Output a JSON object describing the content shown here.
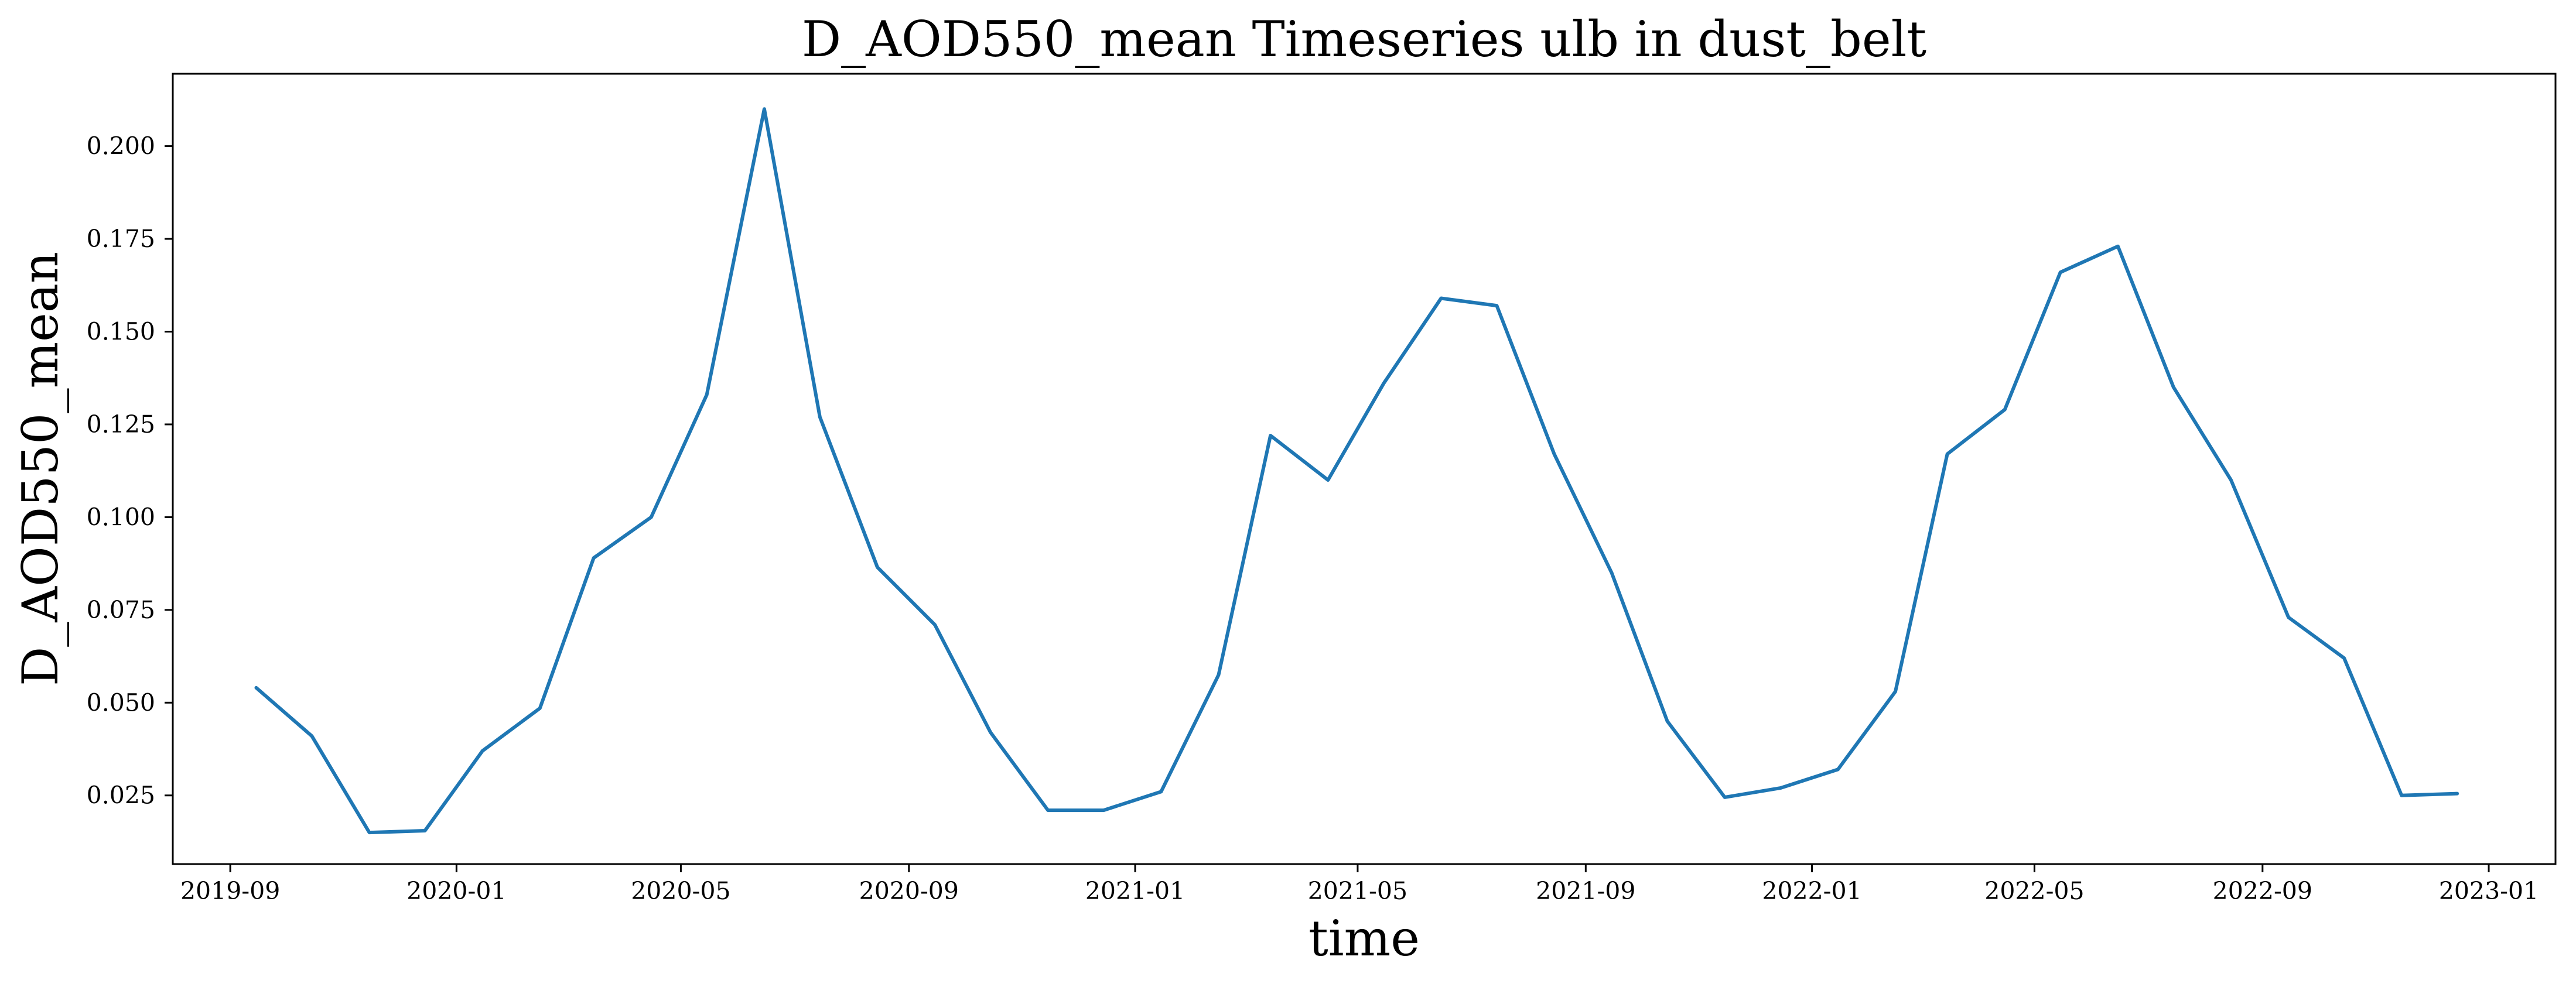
{
  "chart_data": {
    "type": "line",
    "title": "D_AOD550_mean Timeseries ulb in dust_belt",
    "xlabel": "time",
    "ylabel": "D_AOD550_mean",
    "xlim": [
      "2019-08-01",
      "2023-02-06"
    ],
    "ylim": [
      0.0065,
      0.2195
    ],
    "grid": false,
    "x_ticks": [
      {
        "date": "2019-09-01",
        "label": "2019-09"
      },
      {
        "date": "2020-01-01",
        "label": "2020-01"
      },
      {
        "date": "2020-05-01",
        "label": "2020-05"
      },
      {
        "date": "2020-09-01",
        "label": "2020-09"
      },
      {
        "date": "2021-01-01",
        "label": "2021-01"
      },
      {
        "date": "2021-05-01",
        "label": "2021-05"
      },
      {
        "date": "2021-09-01",
        "label": "2021-09"
      },
      {
        "date": "2022-01-01",
        "label": "2022-01"
      },
      {
        "date": "2022-05-01",
        "label": "2022-05"
      },
      {
        "date": "2022-09-01",
        "label": "2022-09"
      },
      {
        "date": "2023-01-01",
        "label": "2023-01"
      }
    ],
    "y_ticks": [
      {
        "value": 0.025,
        "label": "0.025"
      },
      {
        "value": 0.05,
        "label": "0.050"
      },
      {
        "value": 0.075,
        "label": "0.075"
      },
      {
        "value": 0.1,
        "label": "0.100"
      },
      {
        "value": 0.125,
        "label": "0.125"
      },
      {
        "value": 0.15,
        "label": "0.150"
      },
      {
        "value": 0.175,
        "label": "0.175"
      },
      {
        "value": 0.2,
        "label": "0.200"
      }
    ],
    "series": [
      {
        "color": "#1f77b4",
        "x": [
          "2019-09-15",
          "2019-10-15",
          "2019-11-15",
          "2019-12-15",
          "2020-01-15",
          "2020-02-15",
          "2020-03-15",
          "2020-04-15",
          "2020-05-15",
          "2020-06-15",
          "2020-07-15",
          "2020-08-15",
          "2020-09-15",
          "2020-10-15",
          "2020-11-15",
          "2020-12-15",
          "2021-01-15",
          "2021-02-15",
          "2021-03-15",
          "2021-04-15",
          "2021-05-15",
          "2021-06-15",
          "2021-07-15",
          "2021-08-15",
          "2021-09-15",
          "2021-10-15",
          "2021-11-15",
          "2021-12-15",
          "2022-01-15",
          "2022-02-15",
          "2022-03-15",
          "2022-04-15",
          "2022-05-15",
          "2022-06-15",
          "2022-07-15",
          "2022-08-15",
          "2022-09-15",
          "2022-10-15",
          "2022-11-15",
          "2022-12-15"
        ],
        "values": [
          0.054,
          0.041,
          0.015,
          0.0155,
          0.037,
          0.0485,
          0.089,
          0.1,
          0.133,
          0.21,
          0.127,
          0.0865,
          0.071,
          0.042,
          0.021,
          0.021,
          0.026,
          0.0575,
          0.122,
          0.11,
          0.136,
          0.159,
          0.157,
          0.117,
          0.085,
          0.045,
          0.0245,
          0.027,
          0.032,
          0.053,
          0.117,
          0.129,
          0.166,
          0.173,
          0.135,
          0.11,
          0.073,
          0.062,
          0.025,
          0.0255
        ]
      }
    ]
  }
}
